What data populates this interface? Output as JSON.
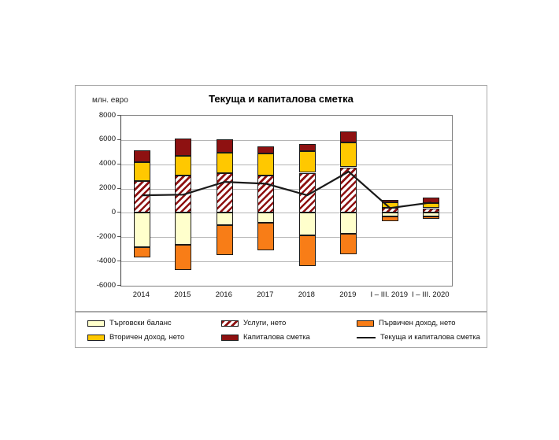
{
  "colors": {
    "cream": "#FFFFCC",
    "yellow": "#FFC800",
    "orange": "#F87D17",
    "darkred": "#8E1111",
    "line": "#1a1a1a",
    "gridline": "#b5b5b5"
  },
  "chart_data": {
    "type": "bar",
    "subtype": "stacked-bars-with-line",
    "title": "Текуща и капиталова сметка",
    "unit_label": "млн. евро",
    "categories": [
      "2014",
      "2015",
      "2016",
      "2017",
      "2018",
      "2019",
      "I – III. 2019",
      "I – III. 2020"
    ],
    "ylim": [
      -6000,
      8000
    ],
    "yticks": [
      8000,
      6000,
      4000,
      2000,
      0,
      -2000,
      -4000,
      -6000
    ],
    "grid": "horizontal",
    "legend_position": "bottom-box",
    "series": [
      {
        "name": "Услуги, нето",
        "style": "hatch",
        "values": [
          2600,
          3050,
          3300,
          3050,
          3300,
          3750,
          400,
          380
        ]
      },
      {
        "name": "Вторичен доход, нето",
        "style": "yellow",
        "values": [
          1550,
          1650,
          1650,
          1850,
          1800,
          2050,
          500,
          450
        ]
      },
      {
        "name": "Капиталова сметка",
        "style": "darkred",
        "values": [
          1000,
          1450,
          1100,
          550,
          600,
          900,
          180,
          450
        ]
      },
      {
        "name": "Търговски баланс",
        "style": "cream",
        "values": [
          -2800,
          -2650,
          -1000,
          -800,
          -1850,
          -1750,
          -320,
          -300
        ]
      },
      {
        "name": "Първичен доход, нето",
        "style": "orange",
        "values": [
          -850,
          -2050,
          -2450,
          -2300,
          -2550,
          -1650,
          -380,
          -190
        ]
      }
    ],
    "line_series": {
      "name": "Текуща и капиталова сметка",
      "values": [
        1450,
        1500,
        2550,
        2400,
        1450,
        3400,
        400,
        850
      ]
    }
  },
  "legend": {
    "items": [
      {
        "label": "Търговски баланс",
        "style": "cream"
      },
      {
        "label": "Услуги, нето",
        "style": "hatch"
      },
      {
        "label": "Първичен доход, нето",
        "style": "orange"
      },
      {
        "label": "Вторичен доход, нето",
        "style": "yellow"
      },
      {
        "label": "Капиталова сметка",
        "style": "darkred"
      },
      {
        "label": "Текуща и капиталова сметка",
        "style": "line"
      }
    ]
  }
}
